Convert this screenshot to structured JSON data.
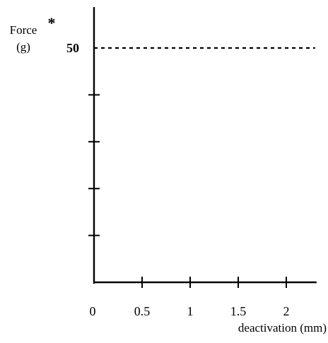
{
  "chart_data": {
    "type": "line",
    "xlabel": "deactivation (mm)",
    "ylabel": "Force\n(g)",
    "ylabel_marker": "*",
    "xlim": [
      0,
      2.3
    ],
    "ylim": [
      0,
      50
    ],
    "x_ticks": [
      0,
      0.5,
      1,
      1.5,
      2
    ],
    "x_tick_labels": [
      "0",
      "0.5",
      "1",
      "1.5",
      "2"
    ],
    "y_ticks": [
      10,
      20,
      30,
      40,
      50
    ],
    "y_tick_labels": [
      "",
      "",
      "",
      "",
      "50"
    ],
    "grid": false,
    "series": [
      {
        "style": "dashed",
        "color": "#000000",
        "x": [
          0,
          2.3
        ],
        "y": [
          50,
          50
        ]
      }
    ]
  }
}
